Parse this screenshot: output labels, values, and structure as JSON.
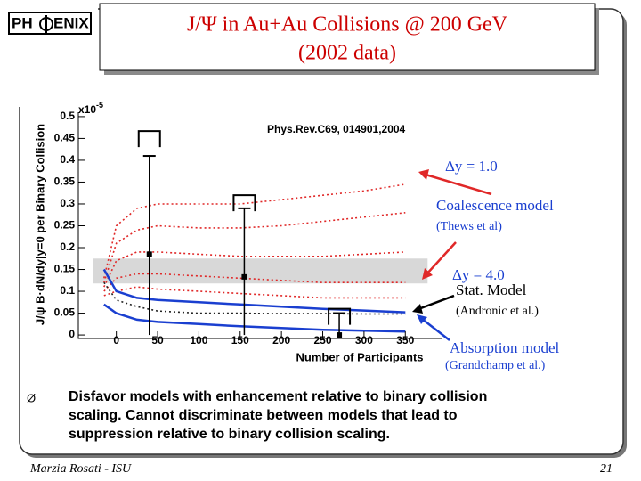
{
  "logo": {
    "left": "PH",
    "right": "ENIX"
  },
  "title": {
    "line1": "J/Ψ  in Au+Au Collisions @ 200 GeV",
    "line2": "(2002 data)"
  },
  "chart_data": {
    "type": "line",
    "reference": "Phys.Rev.C69, 014901,2004",
    "xlabel": "Number of Participants",
    "ylabel": "J/ψ  B·dN/dy|y=0 per Binary Collision",
    "y_multiplier": {
      "base": "x10",
      "exp": "-5"
    },
    "xlim": [
      -46,
      395
    ],
    "ylim": [
      -0.008,
      0.51
    ],
    "xticks": [
      0,
      50,
      100,
      150,
      200,
      250,
      300,
      350
    ],
    "yticks": [
      0,
      0.05,
      0.1,
      0.15,
      0.2,
      0.25,
      0.3,
      0.35,
      0.4,
      0.45,
      0.5
    ],
    "x": [
      -15,
      0,
      25,
      50,
      100,
      150,
      200,
      250,
      300,
      350
    ],
    "series": [
      {
        "color": "#e02828",
        "style": "dotted",
        "values": [
          0.13,
          0.25,
          0.29,
          0.3,
          0.3,
          0.3,
          0.31,
          0.32,
          0.33,
          0.345
        ]
      },
      {
        "color": "#e02828",
        "style": "dotted",
        "values": [
          0.12,
          0.21,
          0.24,
          0.25,
          0.245,
          0.245,
          0.25,
          0.26,
          0.27,
          0.28
        ]
      },
      {
        "color": "#e02828",
        "style": "dotted",
        "values": [
          0.11,
          0.17,
          0.19,
          0.19,
          0.185,
          0.18,
          0.18,
          0.18,
          0.185,
          0.19
        ]
      },
      {
        "color": "#e02828",
        "style": "dotted",
        "values": [
          0.1,
          0.13,
          0.14,
          0.14,
          0.135,
          0.13,
          0.125,
          0.12,
          0.12,
          0.12
        ]
      },
      {
        "color": "#e02828",
        "style": "dotted",
        "values": [
          0.09,
          0.1,
          0.11,
          0.105,
          0.1,
          0.095,
          0.09,
          0.085,
          0.085,
          0.085
        ]
      },
      {
        "color": "#222222",
        "style": "dotted",
        "values": [
          0.12,
          0.08,
          0.065,
          0.055,
          0.05,
          0.05,
          0.049,
          0.049,
          0.048,
          0.048
        ]
      },
      {
        "color": "#1a3fd0",
        "style": "solid",
        "values": [
          0.15,
          0.1,
          0.085,
          0.08,
          0.075,
          0.07,
          0.065,
          0.06,
          0.056,
          0.052
        ]
      },
      {
        "color": "#1a3fd0",
        "style": "solid",
        "values": [
          0.07,
          0.05,
          0.035,
          0.03,
          0.025,
          0.02,
          0.016,
          0.012,
          0.01,
          0.008
        ]
      }
    ],
    "band": {
      "color": "#d8d8d8",
      "ylim": [
        0.118,
        0.175
      ],
      "xlim": [
        -28,
        377
      ]
    },
    "points": {
      "color": "#000000",
      "x": [
        40,
        155,
        270
      ],
      "values": [
        0.185,
        0.133,
        0
      ],
      "err_up": [
        0.225,
        0.157,
        0.05
      ],
      "upper_limits": [
        0.467,
        0.32,
        0.06
      ]
    },
    "annotations": [
      {
        "text": "Δy = 1.0",
        "color": "#1a3fd0"
      },
      {
        "text": "Coalescence model",
        "color": "#1a3fd0"
      },
      {
        "text": "(Thews et al)",
        "color": "#1a3fd0"
      },
      {
        "text": "Δy = 4.0",
        "color": "#1a3fd0"
      },
      {
        "text": "Stat. Model",
        "color": "#000000"
      },
      {
        "text": "(Andronic et al.)",
        "color": "#000000"
      },
      {
        "text": "Absorption model",
        "color": "#1a3fd0"
      },
      {
        "text": "(Grandchamp et al.)",
        "color": "#1a3fd0"
      }
    ]
  },
  "bullet": {
    "marker": "Ø",
    "lines": [
      "Disfavor models with enhancement relative to binary collision",
      "scaling. Cannot discriminate between models that lead to",
      "suppression relative to binary collision scaling."
    ]
  },
  "footer": {
    "author": "Marzia Rosati - ISU",
    "page": "21"
  }
}
